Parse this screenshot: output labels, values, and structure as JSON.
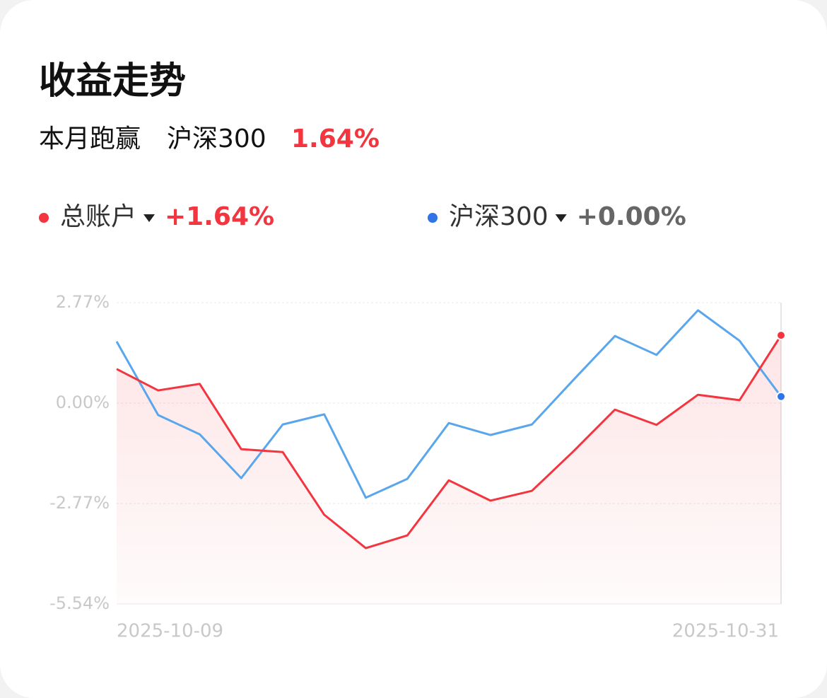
{
  "header": {
    "title": "收益走势",
    "subtitle_prefix": "本月跑赢",
    "subtitle_benchmark": "沪深300",
    "subtitle_value": "1.64%"
  },
  "chart_data": {
    "type": "line",
    "categories": [
      "2025-10-09",
      null,
      null,
      null,
      null,
      null,
      null,
      null,
      null,
      null,
      null,
      null,
      null,
      null,
      null,
      null,
      "2025-10-31"
    ],
    "series": [
      {
        "name": "总账户",
        "change": "+1.64%",
        "color": "#f2353f",
        "values": [
          0.94,
          0.35,
          0.53,
          -1.27,
          -1.35,
          -3.08,
          -4.0,
          -3.65,
          -2.13,
          -2.69,
          -2.42,
          -1.33,
          -0.18,
          -0.6,
          0.23,
          0.08,
          1.87
        ]
      },
      {
        "name": "沪深300",
        "change": "+0.00%",
        "color": "#5aa6ec",
        "values": [
          1.7,
          -0.33,
          -0.86,
          -2.07,
          -0.59,
          -0.31,
          -2.61,
          -2.09,
          -0.55,
          -0.88,
          -0.59,
          0.64,
          1.85,
          1.33,
          2.56,
          1.72,
          0.18
        ]
      }
    ],
    "ylim": [
      -5.54,
      2.77
    ],
    "yticks": [
      {
        "value": 2.77,
        "label": "2.77%"
      },
      {
        "value": 0,
        "label": "0.00%"
      },
      {
        "value": -2.77,
        "label": "-2.77%"
      },
      {
        "value": -5.54,
        "label": "-5.54%"
      }
    ],
    "grid": true
  }
}
